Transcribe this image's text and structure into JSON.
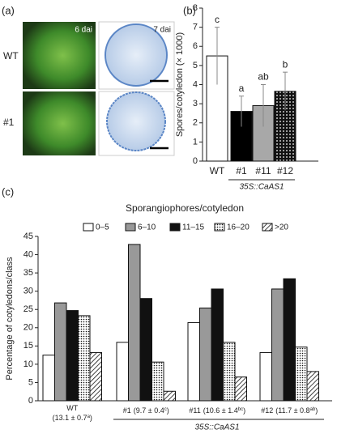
{
  "figure": {
    "panel_labels": [
      "(a)",
      "(b)",
      "(c)"
    ],
    "photo_rows": [
      "WT",
      "#1"
    ],
    "photo_tags": [
      "6 dai",
      "7 dai"
    ]
  },
  "chart_data": [
    {
      "type": "bar",
      "ylabel": "Spores/cotyledon (× 1000)",
      "categories": [
        "WT",
        "#1",
        "#11",
        "#12"
      ],
      "group_label": "35S::CaAS1",
      "values": [
        5.5,
        2.6,
        2.9,
        3.65
      ],
      "errors": [
        1.5,
        0.8,
        1.1,
        1.0
      ],
      "significance": [
        "c",
        "a",
        "ab",
        "b"
      ],
      "fills": [
        "#ffffff",
        "#000000",
        "#a8a8a8",
        "dots-dark"
      ],
      "ylim": [
        0,
        8
      ],
      "yticks": [
        0,
        1,
        2,
        3,
        4,
        5,
        6,
        7,
        8
      ]
    },
    {
      "type": "grouped-bar",
      "title": "Sporangiophores/cotyledon",
      "ylabel": "Percentage of cotyledons/class",
      "categories": [
        "WT",
        "#1",
        "#11",
        "#12"
      ],
      "category_notes": [
        [
          "(13.1 ± 0.7",
          "a",
          ")"
        ],
        [
          "(9.7 ± 0.4",
          "c",
          ")"
        ],
        [
          "(10.6 ± 1.4",
          "bc",
          ")"
        ],
        [
          "(11.7 ± 0.8",
          "ab",
          ")"
        ]
      ],
      "group_label": "35S::CaAS1",
      "series": [
        {
          "name": "0–5",
          "color": "#ffffff",
          "values": [
            12.5,
            16,
            21.4,
            13.2
          ]
        },
        {
          "name": "6–10",
          "color": "#999999",
          "values": [
            26.8,
            42.8,
            25.4,
            30.6
          ]
        },
        {
          "name": "11–15",
          "color": "#111111",
          "values": [
            24.7,
            28,
            30.6,
            33.4
          ]
        },
        {
          "name": "16–20",
          "color": "dots-light",
          "values": [
            23.3,
            10.6,
            16,
            14.7
          ]
        },
        {
          "name": ">20",
          "color": "hatch",
          "values": [
            13.2,
            2.6,
            6.5,
            8
          ]
        }
      ],
      "ylim": [
        0,
        45
      ],
      "yticks": [
        0,
        5,
        10,
        15,
        20,
        25,
        30,
        35,
        40,
        45
      ]
    }
  ]
}
